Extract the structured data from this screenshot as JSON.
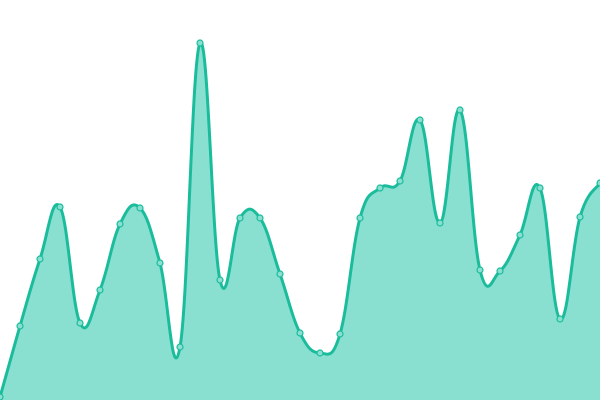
{
  "chart_data": {
    "type": "area",
    "title": "",
    "xlabel": "",
    "ylabel": "",
    "x": [
      0,
      1,
      2,
      3,
      4,
      5,
      6,
      7,
      8,
      9,
      10,
      11,
      12,
      13,
      14,
      15,
      16,
      17,
      18,
      19,
      20,
      21,
      22,
      23,
      24,
      25,
      26,
      27,
      28,
      29,
      30
    ],
    "values": [
      3,
      74,
      141,
      193,
      77,
      110,
      176,
      192,
      137,
      53,
      357,
      120,
      182,
      182,
      126,
      67,
      47,
      66,
      182,
      212,
      219,
      280,
      177,
      290,
      130,
      129,
      165,
      212,
      81,
      183,
      217
    ],
    "xlim": [
      0,
      30
    ],
    "ylim": [
      0,
      400
    ],
    "grid": false,
    "smooth": true,
    "colors": {
      "line": "#1abc9c",
      "fill": "#8ae0d0",
      "marker_fill": "#8ae0d0",
      "marker_stroke": "#1abc9c"
    }
  }
}
